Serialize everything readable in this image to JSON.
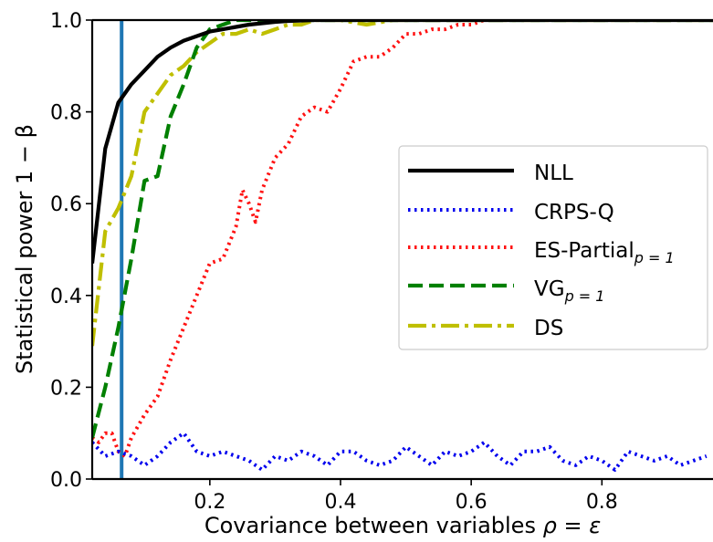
{
  "chart_data": {
    "type": "line",
    "xlabel": "Covariance between variables",
    "xlabel_math": "ρ = ε",
    "ylabel": "Statistical power",
    "ylabel_math": "1 − β",
    "xlim": [
      0.02,
      0.97
    ],
    "ylim": [
      0.0,
      1.0
    ],
    "xticks": [
      0.2,
      0.4,
      0.6,
      0.8
    ],
    "xtick_labels": [
      "0.2",
      "0.4",
      "0.6",
      "0.8"
    ],
    "yticks": [
      0.0,
      0.2,
      0.4,
      0.6,
      0.8,
      1.0
    ],
    "ytick_labels": [
      "0.0",
      "0.2",
      "0.4",
      "0.6",
      "0.8",
      "1.0"
    ],
    "grid": false,
    "legend_position": "center-right",
    "vline": {
      "x": 0.065,
      "color": "#1f77b4"
    },
    "series": [
      {
        "name": "NLL",
        "color": "#000000",
        "style": "solid",
        "x": [
          0.02,
          0.04,
          0.06,
          0.08,
          0.1,
          0.12,
          0.14,
          0.16,
          0.18,
          0.2,
          0.22,
          0.24,
          0.26,
          0.28,
          0.3,
          0.32,
          0.34,
          0.36,
          0.4,
          0.5,
          0.6,
          0.97
        ],
        "y": [
          0.47,
          0.72,
          0.82,
          0.86,
          0.89,
          0.92,
          0.94,
          0.955,
          0.965,
          0.975,
          0.98,
          0.985,
          0.99,
          0.993,
          0.996,
          0.998,
          0.999,
          1.0,
          1.0,
          1.0,
          1.0,
          1.0
        ]
      },
      {
        "name": "CRPS-Q",
        "color": "#0000ee",
        "style": "dotted",
        "x": [
          0.02,
          0.04,
          0.06,
          0.08,
          0.1,
          0.12,
          0.14,
          0.16,
          0.18,
          0.2,
          0.22,
          0.24,
          0.26,
          0.28,
          0.3,
          0.32,
          0.34,
          0.36,
          0.38,
          0.4,
          0.42,
          0.44,
          0.46,
          0.48,
          0.5,
          0.52,
          0.54,
          0.56,
          0.58,
          0.6,
          0.62,
          0.64,
          0.66,
          0.68,
          0.7,
          0.72,
          0.74,
          0.76,
          0.78,
          0.8,
          0.82,
          0.84,
          0.86,
          0.88,
          0.9,
          0.92,
          0.94,
          0.96
        ],
        "y": [
          0.08,
          0.05,
          0.06,
          0.05,
          0.03,
          0.05,
          0.08,
          0.1,
          0.06,
          0.05,
          0.06,
          0.05,
          0.04,
          0.02,
          0.05,
          0.04,
          0.06,
          0.05,
          0.03,
          0.06,
          0.06,
          0.04,
          0.03,
          0.04,
          0.07,
          0.05,
          0.03,
          0.06,
          0.05,
          0.06,
          0.08,
          0.05,
          0.03,
          0.06,
          0.06,
          0.07,
          0.04,
          0.03,
          0.05,
          0.04,
          0.02,
          0.06,
          0.05,
          0.04,
          0.05,
          0.03,
          0.04,
          0.05
        ]
      },
      {
        "name": "ES-Partial",
        "name_subscript": "p = 1",
        "color": "#ff1111",
        "style": "dotted",
        "x": [
          0.02,
          0.03,
          0.04,
          0.05,
          0.06,
          0.07,
          0.08,
          0.1,
          0.12,
          0.14,
          0.16,
          0.18,
          0.2,
          0.22,
          0.24,
          0.25,
          0.26,
          0.27,
          0.28,
          0.3,
          0.32,
          0.34,
          0.36,
          0.38,
          0.4,
          0.42,
          0.44,
          0.46,
          0.48,
          0.5,
          0.52,
          0.54,
          0.56,
          0.58,
          0.6,
          0.62,
          0.64,
          0.7,
          0.8,
          0.97
        ],
        "y": [
          0.09,
          0.08,
          0.1,
          0.1,
          0.06,
          0.05,
          0.09,
          0.14,
          0.18,
          0.26,
          0.33,
          0.4,
          0.47,
          0.48,
          0.55,
          0.63,
          0.6,
          0.56,
          0.63,
          0.7,
          0.73,
          0.79,
          0.81,
          0.8,
          0.85,
          0.91,
          0.92,
          0.92,
          0.94,
          0.97,
          0.97,
          0.98,
          0.98,
          0.99,
          0.99,
          1.0,
          1.0,
          1.0,
          1.0,
          1.0
        ]
      },
      {
        "name": "VG",
        "name_subscript": "p = 1",
        "color": "#008000",
        "style": "dashed",
        "x": [
          0.02,
          0.04,
          0.06,
          0.08,
          0.1,
          0.12,
          0.14,
          0.16,
          0.18,
          0.2,
          0.22,
          0.24,
          0.26,
          0.28,
          0.3,
          0.4,
          0.97
        ],
        "y": [
          0.09,
          0.2,
          0.33,
          0.48,
          0.65,
          0.66,
          0.79,
          0.86,
          0.94,
          0.98,
          0.99,
          1.0,
          1.0,
          1.0,
          1.0,
          1.0,
          1.0
        ]
      },
      {
        "name": "DS",
        "color": "#bfbf00",
        "style": "dashdot",
        "x": [
          0.02,
          0.04,
          0.06,
          0.08,
          0.1,
          0.12,
          0.14,
          0.16,
          0.18,
          0.2,
          0.22,
          0.24,
          0.26,
          0.28,
          0.3,
          0.32,
          0.34,
          0.36,
          0.4,
          0.44,
          0.48,
          0.52,
          0.6,
          0.97
        ],
        "y": [
          0.29,
          0.54,
          0.59,
          0.66,
          0.8,
          0.84,
          0.88,
          0.9,
          0.93,
          0.95,
          0.97,
          0.97,
          0.98,
          0.97,
          0.98,
          0.99,
          0.99,
          1.0,
          1.0,
          0.99,
          1.0,
          1.0,
          1.0,
          1.0
        ]
      }
    ]
  }
}
